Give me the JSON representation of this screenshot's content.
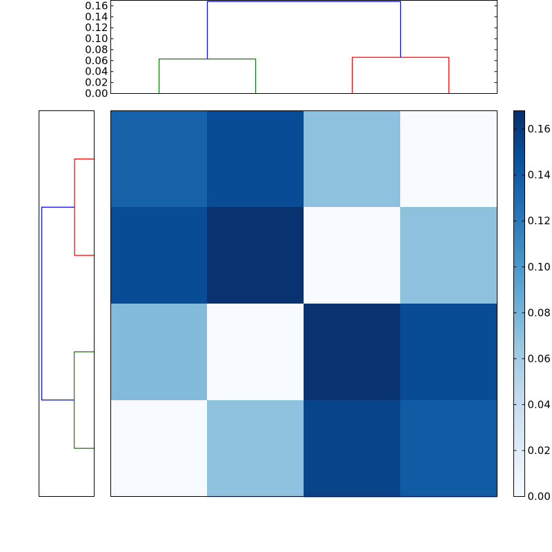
{
  "chart_data": [
    {
      "type": "dendrogram",
      "orientation": "top",
      "ylim": [
        0,
        0.17
      ],
      "yticks": [
        0.0,
        0.02,
        0.04,
        0.06,
        0.08,
        0.1,
        0.12,
        0.14,
        0.16
      ],
      "ytick_labels": [
        "0.00",
        "0.02",
        "0.04",
        "0.06",
        "0.08",
        "0.10",
        "0.12",
        "0.14",
        "0.16"
      ],
      "leaves": 4,
      "links": [
        {
          "left": 0,
          "right": 1,
          "height": 0.063,
          "color": "#008000"
        },
        {
          "left": 2,
          "right": 3,
          "height": 0.066,
          "color": "#ff0000"
        },
        {
          "left": "c01",
          "right": "c23",
          "height": 0.168,
          "color": "#0000ff"
        }
      ]
    },
    {
      "type": "dendrogram",
      "orientation": "left",
      "leaves": 4,
      "links": [
        {
          "left": 0,
          "right": 1,
          "height": 0.063,
          "color": "#ff0000"
        },
        {
          "left": 2,
          "right": 3,
          "height": 0.064,
          "color": "#008000"
        },
        {
          "left": "c01",
          "right": "c23",
          "height": 0.168,
          "color": "#0000ff"
        }
      ]
    },
    {
      "type": "heatmap",
      "colormap": "Blues",
      "vmin": 0,
      "vmax": 0.168,
      "colorbar_ticks": [
        0.0,
        0.02,
        0.04,
        0.06,
        0.08,
        0.1,
        0.12,
        0.14,
        0.16
      ],
      "colorbar_tick_labels": [
        "0.00",
        "0.02",
        "0.04",
        "0.06",
        "0.08",
        "0.10",
        "0.12",
        "0.14",
        "0.16"
      ],
      "values": [
        [
          0.135,
          0.15,
          0.07,
          0.0
        ],
        [
          0.15,
          0.166,
          0.0,
          0.07
        ],
        [
          0.074,
          0.0,
          0.166,
          0.15
        ],
        [
          0.0,
          0.069,
          0.155,
          0.14
        ]
      ]
    }
  ]
}
